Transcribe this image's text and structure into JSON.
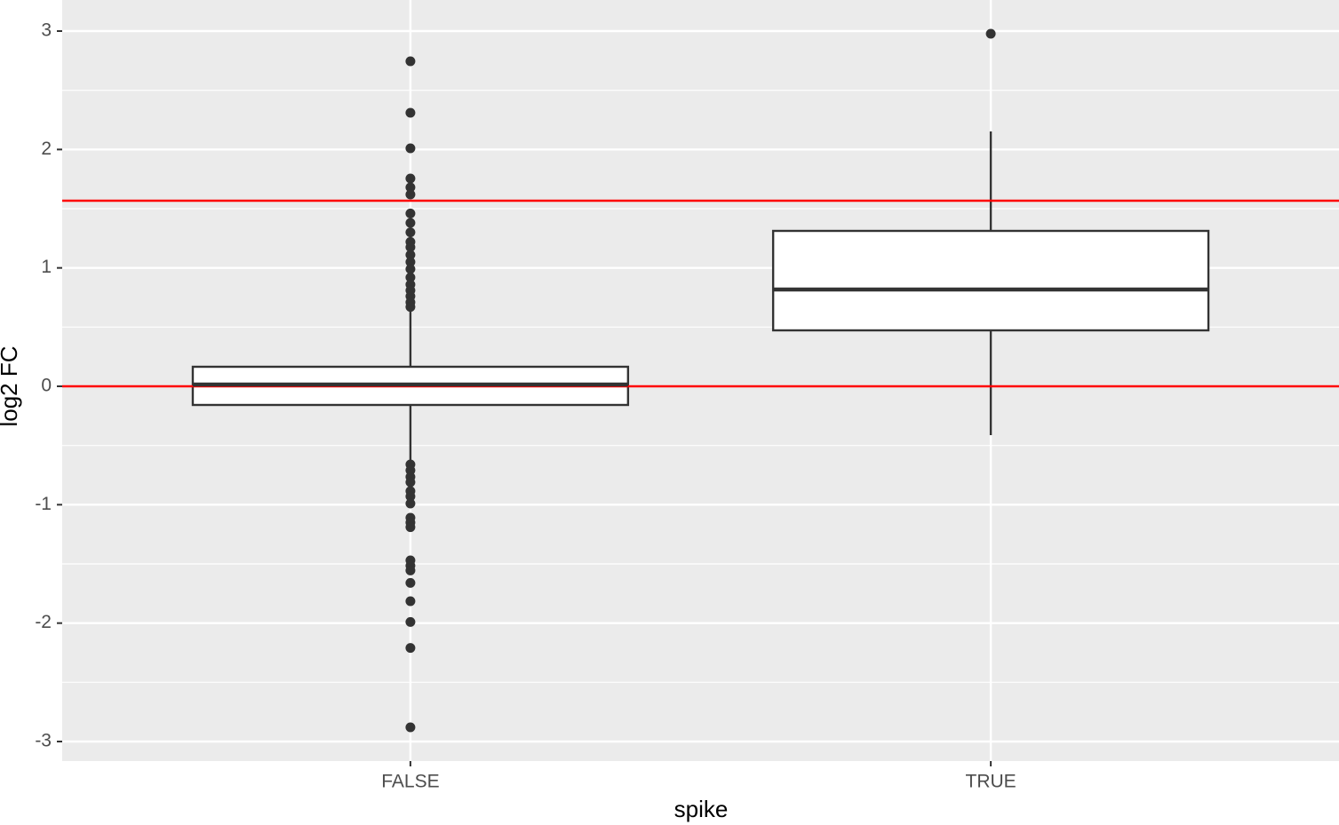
{
  "chart_data": {
    "type": "box",
    "x_label": "spike",
    "y_label": "log2 FC",
    "categories": [
      "FALSE",
      "TRUE"
    ],
    "ylim": [
      -3.165,
      3.2625
    ],
    "yticks": [
      -3,
      -2,
      -1,
      0,
      1,
      2,
      3
    ],
    "grid": true,
    "box_fill": "#ffffff",
    "line_color": "#333333",
    "boxes": [
      {
        "whisker_low": -0.65,
        "q1": -0.1575,
        "median": 0.015,
        "q3": 0.165,
        "whisker_high": 0.66,
        "outliers": [
          2.745,
          2.31,
          2.01,
          1.755,
          1.68,
          1.62,
          1.46,
          1.38,
          1.3,
          1.22,
          1.175,
          1.11,
          1.05,
          0.99,
          0.92,
          0.86,
          0.81,
          0.76,
          0.71,
          0.67,
          -0.66,
          -0.71,
          -0.765,
          -0.81,
          -0.885,
          -0.93,
          -0.99,
          -1.11,
          -1.15,
          -1.19,
          -1.47,
          -1.515,
          -1.555,
          -1.66,
          -1.815,
          -1.99,
          -2.21,
          -2.88
        ]
      },
      {
        "whisker_low": -0.4125,
        "q1": 0.4725,
        "median": 0.8175,
        "q3": 1.3125,
        "whisker_high": 2.1525,
        "outliers": [
          2.9775
        ]
      }
    ],
    "hlines": [
      {
        "value": 1.5675,
        "color": "#ff0000"
      },
      {
        "value": 0,
        "color": "#ff0000"
      }
    ]
  }
}
